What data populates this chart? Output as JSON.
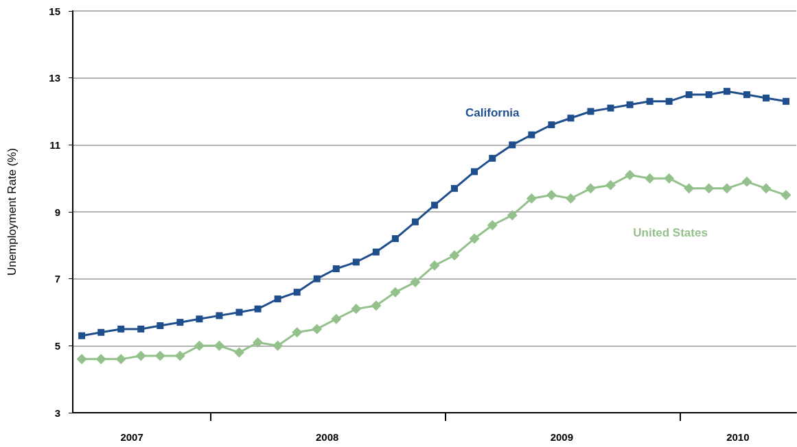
{
  "chart_data": {
    "type": "line",
    "ylabel": "Unemployment Rate (%)",
    "x": [
      "2007-06-15",
      "2007-07-15",
      "2007-08-15",
      "2007-09-15",
      "2007-10-15",
      "2007-11-15",
      "2007-12-15",
      "2008-01-15",
      "2008-02-15",
      "2008-03-15",
      "2008-04-15",
      "2008-05-15",
      "2008-06-15",
      "2008-07-15",
      "2008-08-15",
      "2008-09-15",
      "2008-10-15",
      "2008-11-15",
      "2008-12-15",
      "2009-01-15",
      "2009-02-15",
      "2009-03-15",
      "2009-04-15",
      "2009-05-15",
      "2009-06-15",
      "2009-07-15",
      "2009-08-15",
      "2009-09-15",
      "2009-10-15",
      "2009-11-15",
      "2009-12-15",
      "2010-01-15",
      "2010-02-15",
      "2010-03-15",
      "2010-04-15",
      "2010-05-15",
      "2010-06-15"
    ],
    "xlim": [
      "2007-06-01",
      "2010-07-01"
    ],
    "xticks": [
      {
        "value": "2007-09-01",
        "label": "2007"
      },
      {
        "value": "2008-01-01",
        "label": null
      },
      {
        "value": "2008-07-01",
        "label": "2008"
      },
      {
        "value": "2009-01-01",
        "label": null
      },
      {
        "value": "2009-07-01",
        "label": "2009"
      },
      {
        "value": "2010-01-01",
        "label": null
      },
      {
        "value": "2010-04-01",
        "label": "2010"
      }
    ],
    "series": [
      {
        "name": "California",
        "color": "#1f4e8c",
        "marker": "square",
        "values": [
          5.3,
          5.4,
          5.5,
          5.5,
          5.6,
          5.7,
          5.8,
          5.9,
          6.0,
          6.1,
          6.4,
          6.6,
          7.0,
          7.3,
          7.5,
          7.8,
          8.2,
          8.7,
          9.2,
          9.7,
          10.2,
          10.6,
          11.0,
          11.3,
          11.6,
          11.8,
          12.0,
          12.1,
          12.2,
          12.3,
          12.3,
          12.5,
          12.5,
          12.6,
          12.5,
          12.4,
          12.3
        ]
      },
      {
        "name": "United States",
        "color": "#93c08b",
        "marker": "diamond",
        "values": [
          4.6,
          4.6,
          4.6,
          4.7,
          4.7,
          4.7,
          5.0,
          5.0,
          4.8,
          5.1,
          5.0,
          5.4,
          5.5,
          5.8,
          6.1,
          6.2,
          6.6,
          6.9,
          7.4,
          7.7,
          8.2,
          8.6,
          8.9,
          9.4,
          9.5,
          9.4,
          9.7,
          9.8,
          10.1,
          10.0,
          10.0,
          9.7,
          9.7,
          9.7,
          9.9,
          9.7,
          9.5
        ]
      }
    ],
    "ylim": [
      3,
      15
    ],
    "yticks": [
      3,
      5,
      7,
      9,
      11,
      13,
      15
    ],
    "grid": "y",
    "legend": false,
    "line_style": "solid"
  }
}
